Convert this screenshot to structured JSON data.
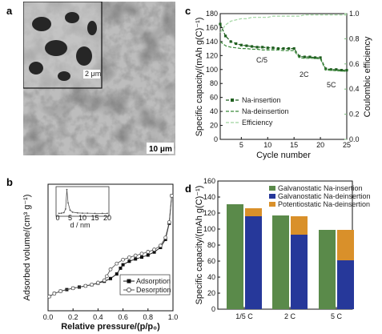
{
  "panels": {
    "a": "a",
    "b": "b",
    "c": "c",
    "d": "d"
  },
  "sem": {
    "inset_scale": "2 μm",
    "main_scale": "10 μm",
    "palette": {
      "pore": "#3a3a3a",
      "wall": "#bdbdbd",
      "highlight": "#e8e8e8"
    }
  },
  "chart_data": [
    {
      "id": "b",
      "type": "line",
      "ylabel": "Adsorbed volume/(cm³ g⁻¹)",
      "xlabel": "Relative pressure/(p/p₀)",
      "xlim": [
        0.0,
        1.0
      ],
      "x_ticks": [
        "0.0",
        "0.2",
        "0.4",
        "0.6",
        "0.8",
        "1.0"
      ],
      "ylim": [
        0,
        550
      ],
      "series": [
        {
          "name": "Adsorption",
          "marker": "square",
          "color": "#111111",
          "points": [
            [
              0.01,
              62
            ],
            [
              0.05,
              75
            ],
            [
              0.1,
              85
            ],
            [
              0.15,
              92
            ],
            [
              0.2,
              98
            ],
            [
              0.25,
              103
            ],
            [
              0.3,
              108
            ],
            [
              0.35,
              113
            ],
            [
              0.4,
              120
            ],
            [
              0.45,
              128
            ],
            [
              0.5,
              140
            ],
            [
              0.55,
              160
            ],
            [
              0.58,
              185
            ],
            [
              0.6,
              200
            ],
            [
              0.65,
              215
            ],
            [
              0.7,
              225
            ],
            [
              0.75,
              233
            ],
            [
              0.8,
              242
            ],
            [
              0.85,
              255
            ],
            [
              0.9,
              275
            ],
            [
              0.94,
              310
            ],
            [
              0.97,
              380
            ],
            [
              0.99,
              500
            ]
          ]
        },
        {
          "name": "Desorption",
          "marker": "circle",
          "color": "#555555",
          "points": [
            [
              0.99,
              500
            ],
            [
              0.97,
              385
            ],
            [
              0.94,
              318
            ],
            [
              0.9,
              283
            ],
            [
              0.85,
              266
            ],
            [
              0.8,
              256
            ],
            [
              0.75,
              248
            ],
            [
              0.7,
              240
            ],
            [
              0.65,
              232
            ],
            [
              0.6,
              222
            ],
            [
              0.55,
              205
            ],
            [
              0.5,
              180
            ],
            [
              0.47,
              150
            ],
            [
              0.45,
              132
            ],
            [
              0.4,
              122
            ],
            [
              0.35,
              114
            ],
            [
              0.3,
              108
            ],
            [
              0.2,
              98
            ],
            [
              0.1,
              85
            ],
            [
              0.05,
              75
            ],
            [
              0.01,
              62
            ]
          ]
        }
      ],
      "legend": [
        "Adsorption",
        "Desorption"
      ],
      "legend_position": "bottom-right",
      "inset": {
        "type": "line",
        "xlabel": "d / nm",
        "xlim": [
          0,
          20
        ],
        "x_ticks": [
          "0",
          "5",
          "10",
          "15",
          "20"
        ],
        "points": [
          [
            0.5,
            0.02
          ],
          [
            1.5,
            0.03
          ],
          [
            2.5,
            0.05
          ],
          [
            3.2,
            0.2
          ],
          [
            3.7,
            1.0
          ],
          [
            4.2,
            0.45
          ],
          [
            5,
            0.15
          ],
          [
            6,
            0.07
          ],
          [
            8,
            0.04
          ],
          [
            10,
            0.03
          ],
          [
            12,
            0.03
          ],
          [
            15,
            0.02
          ],
          [
            18,
            0.02
          ],
          [
            20,
            0.02
          ]
        ]
      }
    },
    {
      "id": "c",
      "type": "line",
      "ylabel": "Specific capacity/(mAh g(C)⁻¹)",
      "y2label": "Coulombic efficiency",
      "xlabel": "Cycle number",
      "xlim": [
        1,
        25
      ],
      "x_ticks": [
        "5",
        "10",
        "15",
        "20",
        "25"
      ],
      "ylim": [
        0,
        180
      ],
      "y_ticks": [
        "0",
        "20",
        "40",
        "60",
        "80",
        "100",
        "120",
        "140",
        "160",
        "180"
      ],
      "y2lim": [
        0.0,
        1.0
      ],
      "y2_ticks": [
        "0.0",
        "0.2",
        "0.4",
        "0.6",
        "0.8",
        "1.0"
      ],
      "annotations": [
        "C/5",
        "2C",
        "5C"
      ],
      "series": [
        {
          "name": "Na-insertion",
          "color": "#1f5f1f",
          "axis": "left",
          "x": [
            1,
            2,
            3,
            4,
            5,
            6,
            7,
            8,
            9,
            10,
            11,
            12,
            13,
            14,
            15,
            16,
            17,
            18,
            19,
            20,
            21,
            22,
            23,
            24,
            25
          ],
          "y": [
            165,
            148,
            140,
            137,
            135,
            134,
            133,
            132,
            132,
            131,
            131,
            130,
            130,
            130,
            130,
            119,
            118,
            118,
            117,
            117,
            101,
            100,
            100,
            99,
            99
          ]
        },
        {
          "name": "Na-deinsertion",
          "color": "#3a8a3a",
          "axis": "left",
          "x": [
            1,
            2,
            3,
            4,
            5,
            6,
            7,
            8,
            9,
            10,
            11,
            12,
            13,
            14,
            15,
            16,
            17,
            18,
            19,
            20,
            21,
            22,
            23,
            24,
            25
          ],
          "y": [
            140,
            134,
            132,
            131,
            130,
            130,
            129,
            129,
            128,
            128,
            128,
            128,
            127,
            127,
            127,
            117,
            116,
            116,
            116,
            115,
            99,
            99,
            98,
            98,
            97
          ]
        },
        {
          "name": "Efficiency",
          "color": "#9fd49f",
          "axis": "right",
          "x": [
            1,
            2,
            3,
            4,
            5,
            6,
            7,
            8,
            9,
            10,
            11,
            12,
            13,
            14,
            15,
            16,
            17,
            18,
            19,
            20,
            21,
            22,
            23,
            24,
            25
          ],
          "y": [
            0.85,
            0.91,
            0.94,
            0.95,
            0.96,
            0.96,
            0.97,
            0.97,
            0.97,
            0.97,
            0.98,
            0.98,
            0.98,
            0.98,
            0.98,
            0.98,
            0.99,
            0.99,
            0.99,
            0.99,
            0.99,
            0.99,
            0.99,
            0.99,
            0.99
          ]
        }
      ],
      "legend": [
        "Na-insertion",
        "Na-deinsertion",
        "Efficiency"
      ],
      "legend_position": "bottom-left"
    },
    {
      "id": "d",
      "type": "bar",
      "ylabel": "Specific capacity/(mAh g(C)⁻¹)",
      "categories": [
        "1/5 C",
        "2 C",
        "5 C"
      ],
      "ylim": [
        0,
        160
      ],
      "y_ticks": [
        "0",
        "20",
        "40",
        "60",
        "80",
        "100",
        "120",
        "140",
        "160"
      ],
      "insertion": {
        "name": "Galvanostatic Na-insertion",
        "color": "#5a8a4a",
        "values": [
          131,
          117,
          99
        ]
      },
      "deinsertion_galvanostatic": {
        "name": "Galvanostatic Na-deinsertion",
        "color": "#26389a",
        "values": [
          116,
          93,
          61
        ]
      },
      "deinsertion_potentiostatic": {
        "name": "Potentiostatic Na-deinsertion",
        "color": "#d9902a",
        "values": [
          10,
          23,
          38
        ]
      },
      "legend_position": "top-right"
    }
  ]
}
